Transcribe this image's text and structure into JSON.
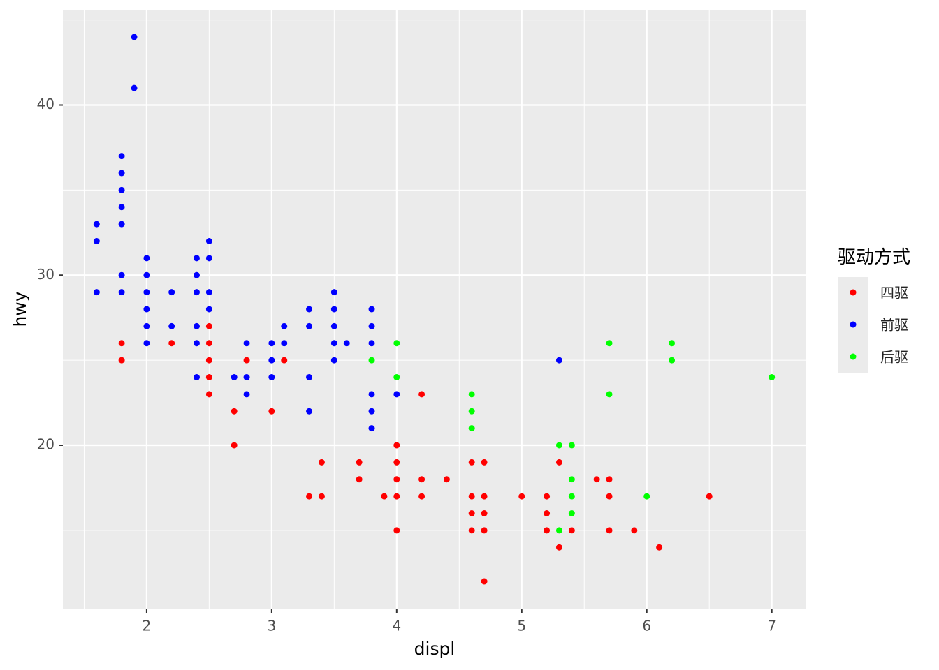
{
  "chart_data": {
    "type": "scatter",
    "x_label": "displ",
    "y_label": "hwy",
    "legend_title": "驱动方式",
    "legend_position": "right",
    "grid": true,
    "xlim": [
      1.33,
      7.27
    ],
    "ylim": [
      10.4,
      45.6
    ],
    "xticks": [
      2,
      3,
      4,
      5,
      6,
      7
    ],
    "yticks": [
      20,
      30,
      40
    ],
    "x_minor_grid": [
      1.5,
      2.5,
      3.5,
      4.5,
      5.5,
      6.5
    ],
    "y_minor_grid": [
      15,
      25,
      35,
      45
    ],
    "series": [
      {
        "name": "四驱",
        "color": "#ff0000",
        "x": [
          1.8,
          1.8,
          2.2,
          2.5,
          2.5,
          2.5,
          2.5,
          2.5,
          2.7,
          2.7,
          2.8,
          3.0,
          3.1,
          3.3,
          3.4,
          3.4,
          3.7,
          3.7,
          3.9,
          4.0,
          4.0,
          4.0,
          4.0,
          4.0,
          4.2,
          4.2,
          4.2,
          4.4,
          4.6,
          4.6,
          4.6,
          4.6,
          4.7,
          4.7,
          4.7,
          4.7,
          4.7,
          5.0,
          5.2,
          5.2,
          5.2,
          5.3,
          5.3,
          5.4,
          5.6,
          5.7,
          5.7,
          5.7,
          5.9,
          6.1,
          6.5
        ],
        "values": [
          26,
          25,
          26,
          27,
          26,
          25,
          24,
          23,
          22,
          20,
          25,
          22,
          25,
          17,
          19,
          17,
          19,
          18,
          17,
          20,
          19,
          18,
          17,
          15,
          23,
          18,
          17,
          18,
          19,
          17,
          16,
          15,
          19,
          17,
          16,
          15,
          12,
          17,
          17,
          16,
          15,
          19,
          14,
          15,
          18,
          18,
          17,
          15,
          15,
          14,
          17
        ]
      },
      {
        "name": "前驱",
        "color": "#0000ff",
        "x": [
          1.6,
          1.6,
          1.6,
          1.8,
          1.8,
          1.8,
          1.8,
          1.8,
          1.8,
          1.8,
          1.9,
          1.9,
          2.0,
          2.0,
          2.0,
          2.0,
          2.0,
          2.0,
          2.2,
          2.2,
          2.4,
          2.4,
          2.4,
          2.4,
          2.4,
          2.4,
          2.5,
          2.5,
          2.5,
          2.5,
          2.7,
          2.8,
          2.8,
          2.8,
          3.0,
          3.0,
          3.0,
          3.1,
          3.1,
          3.3,
          3.3,
          3.3,
          3.3,
          3.5,
          3.5,
          3.5,
          3.5,
          3.5,
          3.6,
          3.8,
          3.8,
          3.8,
          3.8,
          3.8,
          3.8,
          4.0,
          5.3
        ],
        "values": [
          33,
          32,
          29,
          37,
          36,
          35,
          34,
          33,
          30,
          29,
          44,
          41,
          31,
          30,
          29,
          28,
          27,
          26,
          29,
          27,
          31,
          30,
          29,
          27,
          26,
          24,
          32,
          31,
          29,
          28,
          24,
          26,
          24,
          23,
          26,
          25,
          24,
          27,
          26,
          28,
          27,
          24,
          22,
          29,
          28,
          27,
          26,
          25,
          26,
          28,
          27,
          26,
          23,
          22,
          21,
          23,
          25
        ]
      },
      {
        "name": "后驱",
        "color": "#00ff00",
        "x": [
          3.8,
          4.0,
          4.0,
          4.6,
          4.6,
          4.6,
          5.3,
          5.3,
          5.4,
          5.4,
          5.4,
          5.4,
          5.7,
          5.7,
          6.0,
          6.2,
          6.2,
          7.0
        ],
        "values": [
          25,
          26,
          24,
          23,
          22,
          21,
          20,
          15,
          20,
          18,
          17,
          16,
          26,
          23,
          17,
          26,
          25,
          24
        ]
      }
    ]
  }
}
